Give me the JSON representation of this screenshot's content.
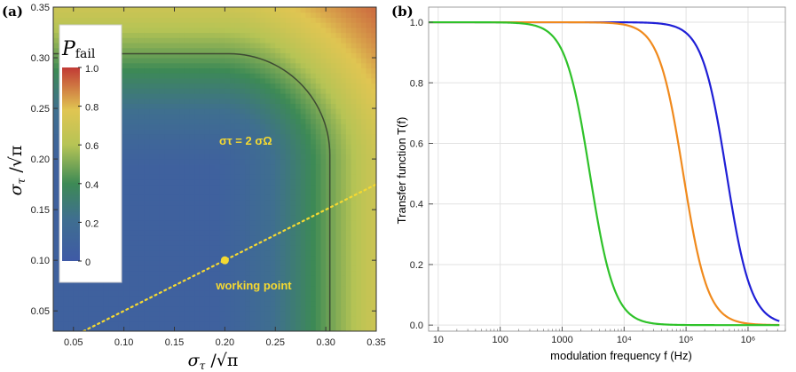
{
  "chart_data": [
    {
      "panel": "(a)",
      "type": "heatmap",
      "x_range": [
        0.03,
        0.35
      ],
      "y_range": [
        0.03,
        0.35
      ],
      "x_ticks": [
        "0.05",
        "0.10",
        "0.15",
        "0.20",
        "0.25",
        "0.30",
        "0.35"
      ],
      "y_ticks": [
        "0.05",
        "0.10",
        "0.15",
        "0.20",
        "0.25",
        "0.30",
        "0.35"
      ],
      "xlabel": "σ_τ / √π",
      "ylabel": "σ_τ / √π",
      "colorbar": {
        "title": "P_fail",
        "ticks": [
          "1.0",
          "0.8",
          "0.6",
          "0.4",
          "0.2",
          "0"
        ],
        "range": [
          0,
          1
        ]
      },
      "contour_label": "στ = 2 σΩ",
      "contour_corner": [
        0.304,
        0.304
      ],
      "working_point": {
        "x": 0.2,
        "y": 0.1,
        "label": "working point"
      },
      "dotted_line": {
        "x": [
          0.06,
          0.35
        ],
        "y": [
          0.03,
          0.175
        ]
      },
      "colors": {
        "low": "#3f5aa6",
        "mid_low": "#3f8b5a",
        "mid": "#cfc654",
        "high": "#c13a35",
        "accent": "#f5d931"
      }
    },
    {
      "panel": "(b)",
      "type": "line",
      "x_scale": "log",
      "x_range": [
        7,
        4000000
      ],
      "y_range": [
        -0.02,
        1.05
      ],
      "x_ticks": [
        {
          "v": 10,
          "label": "10"
        },
        {
          "v": 100,
          "label": "100"
        },
        {
          "v": 1000,
          "label": "1000"
        },
        {
          "v": 10000,
          "label": "10⁴"
        },
        {
          "v": 100000,
          "label": "10⁵"
        },
        {
          "v": 1000000,
          "label": "10⁶"
        }
      ],
      "y_ticks": [
        "0.0",
        "0.2",
        "0.4",
        "0.6",
        "0.8",
        "1.0"
      ],
      "xlabel": "modulation frequency  f  (Hz)",
      "ylabel": "Transfer function  T(f)",
      "series": [
        {
          "color": "#1f1fd6",
          "cutoff_hz": 450000,
          "order": 2.2
        },
        {
          "color": "#f08a1d",
          "cutoff_hz": 90000,
          "order": 2.2
        },
        {
          "color": "#2fc22a",
          "cutoff_hz": 2800,
          "order": 2.2
        }
      ]
    }
  ]
}
